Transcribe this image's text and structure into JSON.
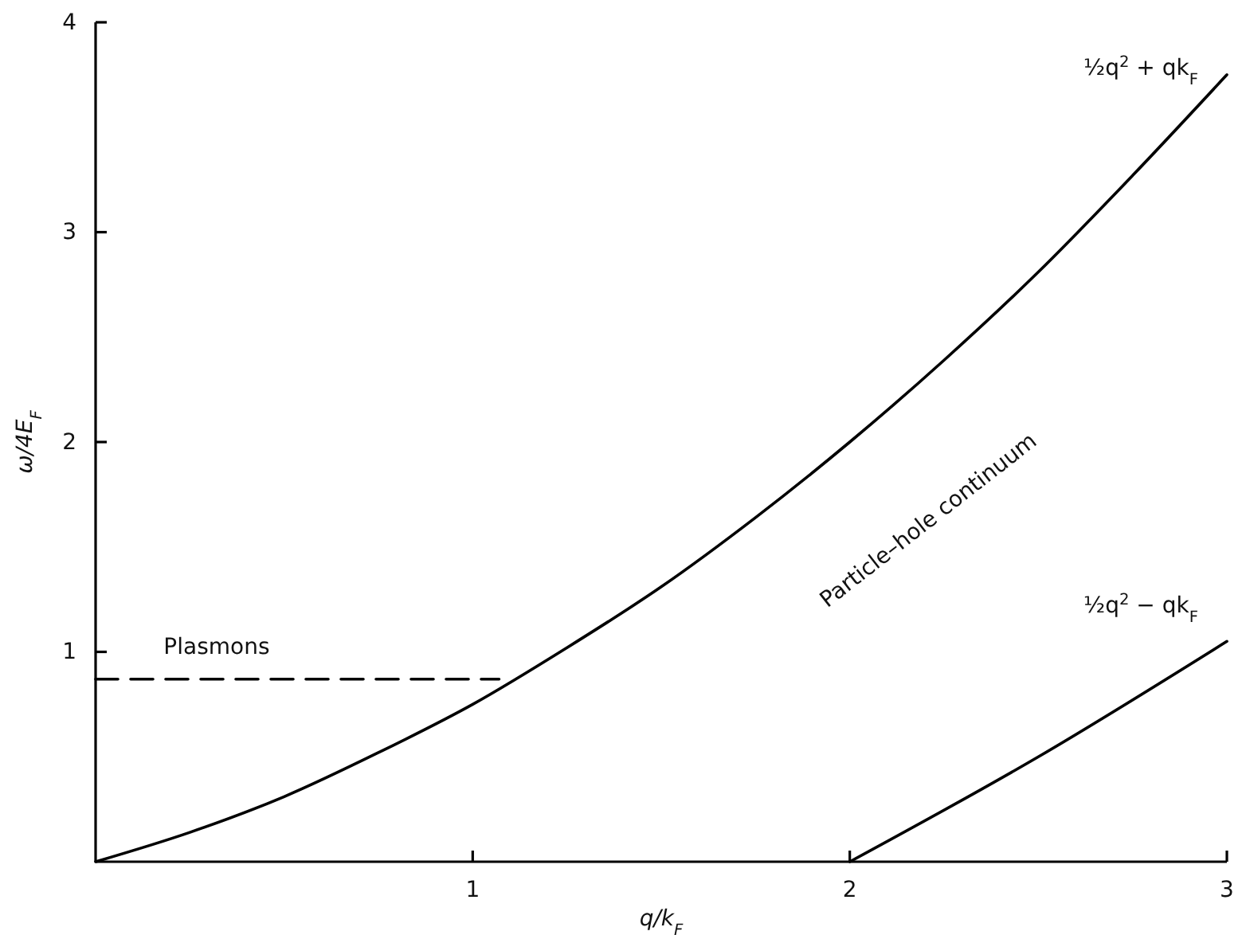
{
  "chart_data": {
    "type": "line",
    "xlabel": "q/k$_{F}$",
    "ylabel": "ω/4E$_{F}$",
    "xlim": [
      0,
      3
    ],
    "ylim": [
      0,
      4
    ],
    "xticks": [
      1,
      2,
      3
    ],
    "yticks": [
      1,
      2,
      3,
      4
    ],
    "grid": false,
    "legend": false,
    "marker": "none",
    "series": [
      {
        "name": "½q$^{2}$ + qk$_{F}$",
        "color": "#000000",
        "line_style": "solid",
        "x": [
          0,
          0.25,
          0.5,
          0.75,
          1,
          1.25,
          1.5,
          1.75,
          2,
          2.25,
          2.5,
          2.75,
          3
        ],
        "values": [
          0,
          0.14,
          0.31,
          0.52,
          0.75,
          1.02,
          1.31,
          1.64,
          2.0,
          2.39,
          2.81,
          3.27,
          3.75
        ]
      },
      {
        "name": "½q$^{2}$ − qk$_{F}$",
        "color": "#000000",
        "line_style": "solid",
        "x": [
          2,
          2.5,
          3
        ],
        "values": [
          0,
          0.5,
          1.05
        ]
      },
      {
        "name": "Plasmons",
        "color": "#000000",
        "line_style": "dashed",
        "x": [
          0,
          1.07
        ],
        "values": [
          0.87,
          0.87
        ]
      }
    ],
    "annotations": [
      "Particle–hole continuum"
    ]
  }
}
